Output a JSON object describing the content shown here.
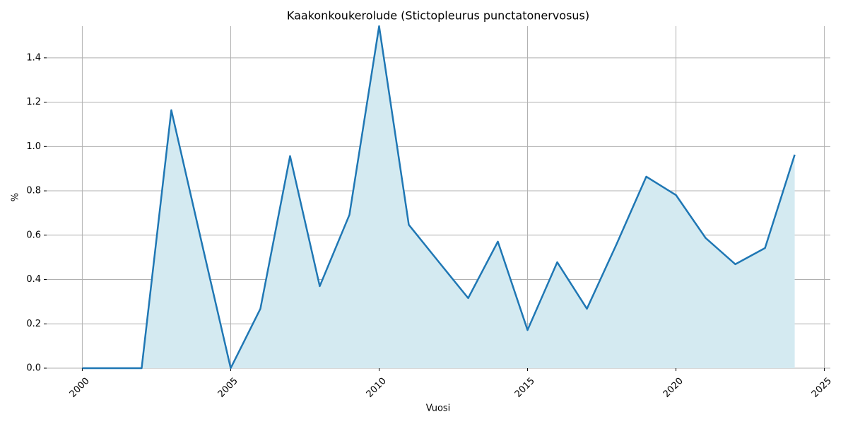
{
  "chart_data": {
    "type": "line",
    "title": "Kaakonkoukerolude (Stictopleurus punctatonervosus)",
    "x_label": "Vuosi",
    "y_label": "%",
    "x": [
      2000,
      2001,
      2002,
      2003,
      2004,
      2005,
      2006,
      2007,
      2008,
      2009,
      2010,
      2011,
      2012,
      2013,
      2014,
      2015,
      2016,
      2017,
      2018,
      2019,
      2020,
      2021,
      2022,
      2023,
      2024
    ],
    "series": [
      {
        "color": "#1f77b4",
        "fill": "#d4eaf1",
        "values": [
          0,
          0,
          0,
          1.164,
          0.58,
          0,
          0.268,
          0.957,
          0.37,
          0.692,
          1.543,
          0.647,
          0.481,
          0.316,
          0.571,
          0.172,
          0.478,
          0.268,
          0.56,
          0.864,
          0.781,
          0.587,
          0.469,
          0.542,
          0.963
        ]
      }
    ],
    "xlim": [
      1998.8,
      2025.2
    ],
    "ylim": [
      0,
      1.543
    ],
    "xticks": [
      2000,
      2005,
      2010,
      2015,
      2020,
      2025
    ],
    "yticks": [
      {
        "value": 0,
        "label": "0.0"
      },
      0.2,
      0.4,
      0.6,
      0.8,
      {
        "value": 1,
        "label": "1.0"
      },
      1.2,
      1.4
    ],
    "grid": true
  }
}
